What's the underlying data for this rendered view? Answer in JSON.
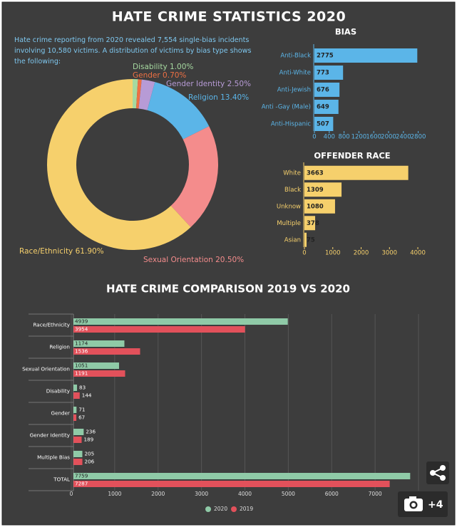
{
  "title": "HATE CRIME STATISTICS 2020",
  "intro": "Hate crime reporting from 2020 revealed 7,554 single-bias incidents involving 10,580 victims. A distribution of victims by bias type shows the following:",
  "chart_data": [
    {
      "type": "donut",
      "categories": [
        "Disability",
        "Gender",
        "Gender Identity",
        "Religion",
        "Sexual Orientation",
        "Race/Ethnicity"
      ],
      "values": [
        1,
        0.7,
        2.5,
        13.4,
        20.5,
        61.9
      ],
      "value_labels": [
        "1.00%",
        "0.70%",
        "2.50%",
        "13.40%",
        "20.50%",
        "61.90%"
      ],
      "colors": [
        "#a6d9a0",
        "#ee7043",
        "#b79bd6",
        "#5bb5e8",
        "#f48c8c",
        "#f6d06c"
      ]
    },
    {
      "type": "hbar",
      "title": "BIAS",
      "categories": [
        "Anti-Black",
        "Anti-White",
        "Anti-Jewish",
        "Anti -Gay (Male)",
        "Anti-Hispanic"
      ],
      "values": [
        2775,
        773,
        676,
        649,
        507
      ],
      "color": "#5bb5e8",
      "xlim": [
        0,
        3000
      ],
      "xticks": [
        0,
        400,
        800,
        1200,
        1600,
        2000,
        2400,
        2800
      ]
    },
    {
      "type": "hbar",
      "title": "OFFENDER RACE",
      "categories": [
        "White",
        "Black",
        "Unknow",
        "Multiple",
        "Asian"
      ],
      "values": [
        3663,
        1309,
        1080,
        378,
        75
      ],
      "color": "#f6d06c",
      "xlim": [
        0,
        4200
      ],
      "xticks": [
        0,
        1000,
        2000,
        3000,
        4000
      ]
    },
    {
      "type": "grouped-hbar",
      "title": "HATE CRIME COMPARISON 2019 VS 2020",
      "categories": [
        "Race/Ethnicity",
        "Religion",
        "Sexual Orientation",
        "Disability",
        "Gender",
        "Gender Identity",
        "Multiple Bias",
        "TOTAL"
      ],
      "series": [
        {
          "name": "2020",
          "color": "#8fcaa7",
          "values": [
            4939,
            1174,
            1051,
            83,
            71,
            236,
            205,
            7759
          ]
        },
        {
          "name": "2019",
          "color": "#e2515b",
          "values": [
            3954,
            1536,
            1191,
            144,
            67,
            189,
            206,
            7287
          ]
        }
      ],
      "xlim": [
        0,
        8000
      ],
      "xticks": [
        0,
        1000,
        2000,
        3000,
        4000,
        5000,
        6000,
        7000,
        8000
      ],
      "grid": true,
      "legend": "bottom"
    }
  ],
  "overlay": {
    "photo_count": "+4"
  }
}
